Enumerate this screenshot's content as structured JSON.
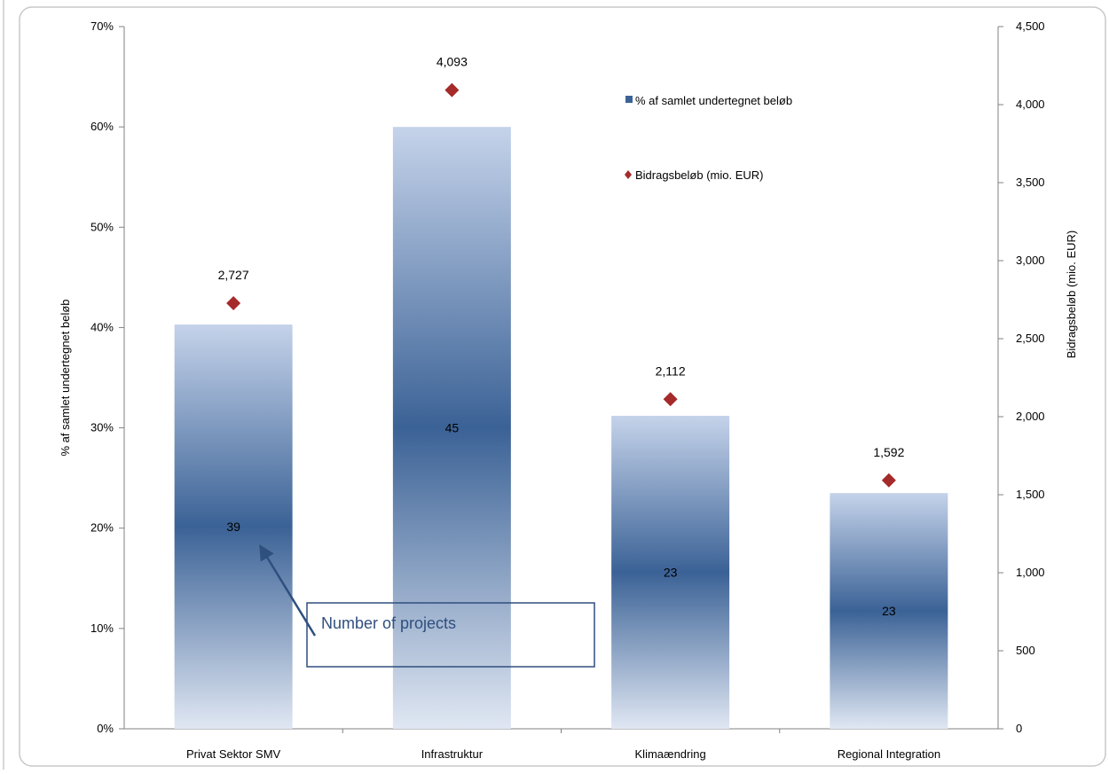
{
  "chart_data": {
    "type": "bar",
    "categories": [
      "Privat Sektor SMV",
      "Infrastruktur",
      "Klimaændring",
      "Regional Integration"
    ],
    "series": [
      {
        "name": "% af samlet undertegnet beløb",
        "type": "bar",
        "axis": "left",
        "values": [
          40.3,
          60.0,
          31.2,
          23.5
        ],
        "data_labels": [
          "39",
          "45",
          "23",
          "23"
        ],
        "color": "#3b6296"
      },
      {
        "name": "Bidragsbeløb (mio. EUR)",
        "type": "scatter",
        "axis": "right",
        "values": [
          2727,
          4093,
          2112,
          1592
        ],
        "data_labels": [
          "2,727",
          "4,093",
          "2,112",
          "1,592"
        ],
        "color": "#a52a2a"
      }
    ],
    "ylabel": "% af samlet undertegnet beløb",
    "y2label": "Bidragsbeløb (mio. EUR)",
    "ylim": [
      0,
      70
    ],
    "y2lim": [
      0,
      4500
    ],
    "yticks": [
      "0%",
      "10%",
      "20%",
      "30%",
      "40%",
      "50%",
      "60%",
      "70%"
    ],
    "y2ticks": [
      "0",
      "500",
      "1,000",
      "1,500",
      "2,000",
      "2,500",
      "3,000",
      "3,500",
      "4,000",
      "4,500"
    ],
    "legend_position": "top-right",
    "annotation": {
      "text": "Number of projects",
      "points_to": "Privat Sektor SMV"
    },
    "grid": false
  }
}
